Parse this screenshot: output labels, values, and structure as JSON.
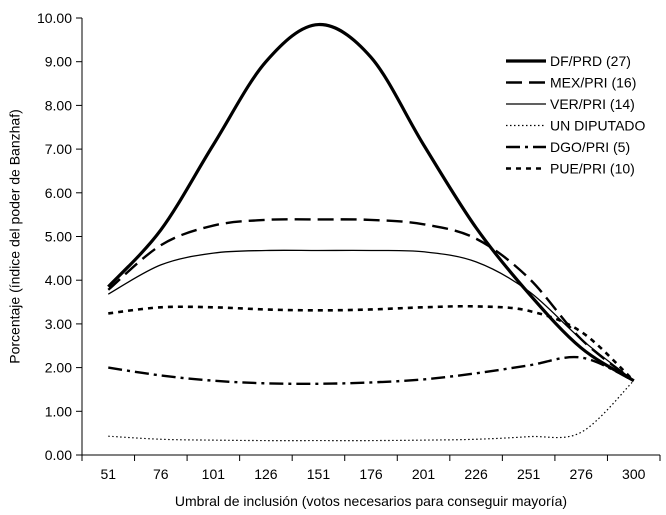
{
  "chart_data": {
    "type": "line",
    "title": "",
    "xlabel": "Umbral de inclusión (votos necesarios para conseguir mayoría)",
    "ylabel": "Porcentaje (índice del poder de Banzhaf)",
    "categories": [
      "51",
      "76",
      "101",
      "126",
      "151",
      "176",
      "201",
      "226",
      "251",
      "276",
      "300"
    ],
    "x": [
      51,
      76,
      101,
      126,
      151,
      176,
      201,
      226,
      251,
      276,
      300
    ],
    "ylim": [
      0,
      10
    ],
    "yticks": [
      "0.00",
      "1.00",
      "2.00",
      "3.00",
      "4.00",
      "5.00",
      "6.00",
      "7.00",
      "8.00",
      "9.00",
      "10.00"
    ],
    "grid": false,
    "legend_position": "top-right",
    "series": [
      {
        "name": "DF/PRD (27)",
        "style": "solid-thick",
        "color": "#000000",
        "values": [
          3.85,
          5.15,
          7.1,
          9.0,
          9.85,
          9.1,
          7.1,
          5.2,
          3.7,
          2.45,
          1.7
        ]
      },
      {
        "name": "MEX/PRI (16)",
        "style": "long-dash",
        "color": "#000000",
        "values": [
          3.78,
          4.8,
          5.25,
          5.38,
          5.39,
          5.38,
          5.28,
          4.95,
          4.05,
          2.65,
          1.7
        ]
      },
      {
        "name": "VER/PRI (14)",
        "style": "solid-thin",
        "color": "#000000",
        "values": [
          3.68,
          4.35,
          4.62,
          4.68,
          4.68,
          4.68,
          4.65,
          4.42,
          3.75,
          2.65,
          1.7
        ]
      },
      {
        "name": "UN DIPUTADO",
        "style": "dotted",
        "color": "#000000",
        "values": [
          0.43,
          0.36,
          0.34,
          0.33,
          0.33,
          0.33,
          0.34,
          0.36,
          0.42,
          0.52,
          1.7
        ]
      },
      {
        "name": "DGO/PRI (5)",
        "style": "dash-dot",
        "color": "#000000",
        "values": [
          2.0,
          1.82,
          1.7,
          1.64,
          1.63,
          1.66,
          1.73,
          1.87,
          2.05,
          2.23,
          1.7
        ]
      },
      {
        "name": "PUE/PRI (10)",
        "style": "short-dash",
        "color": "#000000",
        "values": [
          3.24,
          3.38,
          3.38,
          3.33,
          3.31,
          3.33,
          3.38,
          3.4,
          3.3,
          2.82,
          1.7
        ]
      }
    ]
  }
}
